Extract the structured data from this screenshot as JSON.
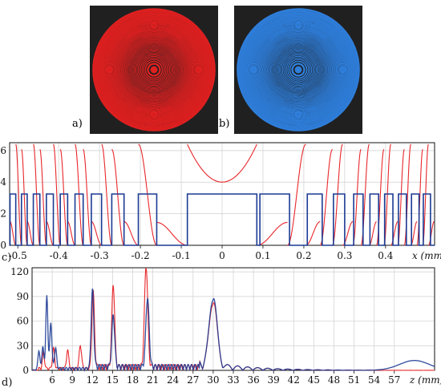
{
  "panels": {
    "a": {
      "label": "a)",
      "ring_color": "#e02020",
      "bg": "#202020"
    },
    "b": {
      "label": "b)",
      "ring_color": "#2f7fdc",
      "bg": "#202020"
    },
    "c": {
      "label": "c)",
      "xunit_label": "x (mm)"
    },
    "d": {
      "label": "d)",
      "xunit_label": "z (mm)"
    }
  },
  "colors": {
    "red": "#e8272b",
    "blue": "#1b3a94",
    "grid": "#cfcfcf",
    "axis": "#111111"
  },
  "chart_data": [
    {
      "type": "line",
      "panel": "c",
      "xlabel": "x (mm)",
      "xlim": [
        -0.52,
        0.52
      ],
      "ylim": [
        0,
        6.5
      ],
      "x_ticks": [
        -0.5,
        -0.4,
        -0.3,
        -0.2,
        -0.1,
        0,
        0.1,
        0.2,
        0.3,
        0.4
      ],
      "x_tick_labels": [
        "-0.5",
        "-0.4",
        "-0.3",
        "-0.2",
        "-0.1",
        "0",
        "0.1",
        "0.2",
        "0.3",
        "0.4"
      ],
      "y_ticks": [
        0,
        2,
        4,
        6
      ],
      "y_tick_labels": [
        "0",
        "2",
        "4",
        "6"
      ],
      "grid": true,
      "series": [
        {
          "color": "red",
          "kind": "phase-wrapped profile",
          "zone_edges": [
            0.085,
            0.16,
            0.205,
            0.24,
            0.27,
            0.295,
            0.32,
            0.34,
            0.36,
            0.378,
            0.396,
            0.413,
            0.43,
            0.446,
            0.462,
            0.477,
            0.491,
            0.505,
            0.519
          ],
          "center_value": 4.0,
          "peak_value": 6.4
        },
        {
          "color": "blue",
          "kind": "binary step profile",
          "levels": [
            0,
            3.25
          ],
          "center_plateau": [
            -0.085,
            0.085
          ]
        }
      ]
    },
    {
      "type": "line",
      "panel": "d",
      "xlabel": "z (mm)",
      "xlim": [
        3,
        63
      ],
      "ylim": [
        0,
        125
      ],
      "x_ticks": [
        6,
        9,
        12,
        15,
        18,
        21,
        24,
        27,
        30,
        33,
        36,
        39,
        42,
        45,
        48,
        51,
        54,
        57
      ],
      "x_tick_labels": [
        "6",
        "9",
        "12",
        "15",
        "18",
        "21",
        "24",
        "27",
        "30",
        "33",
        "36",
        "39",
        "42",
        "45",
        "48",
        "51",
        "54",
        "57"
      ],
      "y_ticks": [
        0,
        30,
        60,
        90,
        120
      ],
      "y_tick_labels": [
        "0",
        "30",
        "60",
        "90",
        "120"
      ],
      "grid": true,
      "series": [
        {
          "color": "red",
          "peaks": [
            [
              4.7,
              20
            ],
            [
              6.2,
              25
            ],
            [
              8.3,
              22
            ],
            [
              10.2,
              28
            ],
            [
              12.1,
              92
            ],
            [
              15.1,
              101
            ],
            [
              20.0,
              124
            ],
            [
              30.0,
              80
            ]
          ]
        },
        {
          "color": "blue",
          "peaks": [
            [
              4.0,
              22
            ],
            [
              4.6,
              26
            ],
            [
              5.2,
              88
            ],
            [
              5.8,
              56
            ],
            [
              6.5,
              25
            ],
            [
              12.0,
              96
            ],
            [
              15.1,
              63
            ],
            [
              20.2,
              84
            ],
            [
              30.0,
              85
            ],
            [
              60.0,
              12
            ]
          ]
        }
      ]
    }
  ]
}
